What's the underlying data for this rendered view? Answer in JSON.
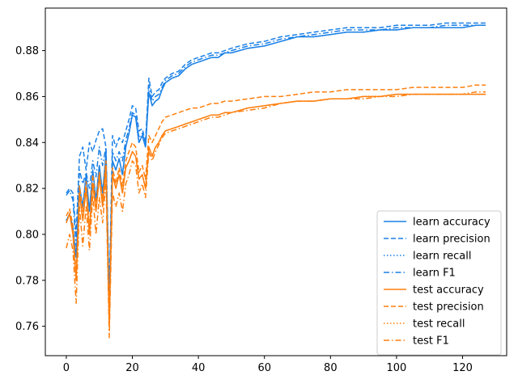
{
  "chart_data": {
    "type": "line",
    "title": "",
    "xlabel": "",
    "ylabel": "",
    "xlim": [
      -6.35,
      133.35
    ],
    "ylim": [
      0.7472,
      0.8985
    ],
    "xticks": [
      0,
      20,
      40,
      60,
      80,
      100,
      120
    ],
    "yticks": [
      0.76,
      0.78,
      0.8,
      0.82,
      0.84,
      0.86,
      0.88
    ],
    "ytick_labels": [
      "0.76",
      "0.78",
      "0.80",
      "0.82",
      "0.84",
      "0.86",
      "0.88"
    ],
    "grid": false,
    "legend_position": "lower-right",
    "colors": {
      "learn": "#1a80e6",
      "test": "#ff7f0e"
    },
    "series": [
      {
        "name": "learn accuracy",
        "group": "learn",
        "style": "solid",
        "x": [
          0,
          1,
          2,
          3,
          4,
          5,
          6,
          7,
          8,
          9,
          10,
          11,
          12,
          13,
          14,
          15,
          16,
          17,
          18,
          19,
          20,
          21,
          22,
          23,
          24,
          25,
          26,
          27,
          28,
          29,
          30,
          32,
          34,
          36,
          38,
          40,
          42,
          44,
          46,
          48,
          50,
          55,
          60,
          65,
          70,
          75,
          80,
          85,
          90,
          95,
          100,
          105,
          110,
          115,
          120,
          124,
          127
        ],
        "y": [
          0.806,
          0.809,
          0.803,
          0.79,
          0.821,
          0.812,
          0.826,
          0.81,
          0.828,
          0.815,
          0.83,
          0.818,
          0.835,
          0.77,
          0.832,
          0.828,
          0.833,
          0.826,
          0.838,
          0.844,
          0.852,
          0.851,
          0.84,
          0.843,
          0.838,
          0.862,
          0.856,
          0.858,
          0.859,
          0.863,
          0.866,
          0.868,
          0.869,
          0.872,
          0.874,
          0.875,
          0.876,
          0.877,
          0.877,
          0.879,
          0.879,
          0.881,
          0.882,
          0.884,
          0.886,
          0.886,
          0.887,
          0.888,
          0.888,
          0.889,
          0.889,
          0.89,
          0.89,
          0.89,
          0.89,
          0.891,
          0.891
        ]
      },
      {
        "name": "learn precision",
        "group": "learn",
        "style": "dashed",
        "x": [
          0,
          1,
          2,
          3,
          4,
          5,
          6,
          7,
          8,
          9,
          10,
          11,
          12,
          13,
          14,
          15,
          16,
          17,
          18,
          19,
          20,
          21,
          22,
          23,
          24,
          25,
          26,
          27,
          28,
          29,
          30,
          32,
          34,
          36,
          38,
          40,
          42,
          44,
          46,
          48,
          50,
          55,
          60,
          65,
          70,
          75,
          80,
          85,
          90,
          95,
          100,
          105,
          110,
          115,
          120,
          124,
          127
        ],
        "y": [
          0.818,
          0.82,
          0.818,
          0.8,
          0.834,
          0.838,
          0.828,
          0.84,
          0.836,
          0.841,
          0.845,
          0.846,
          0.838,
          0.773,
          0.843,
          0.838,
          0.842,
          0.84,
          0.845,
          0.85,
          0.856,
          0.855,
          0.845,
          0.846,
          0.84,
          0.868,
          0.86,
          0.862,
          0.863,
          0.866,
          0.868,
          0.87,
          0.871,
          0.874,
          0.876,
          0.877,
          0.878,
          0.879,
          0.879,
          0.88,
          0.881,
          0.883,
          0.884,
          0.886,
          0.887,
          0.888,
          0.889,
          0.89,
          0.89,
          0.89,
          0.891,
          0.891,
          0.891,
          0.892,
          0.892,
          0.892,
          0.892
        ]
      },
      {
        "name": "learn recall",
        "group": "learn",
        "style": "dotted",
        "x": [
          0,
          1,
          2,
          3,
          4,
          5,
          6,
          7,
          8,
          9,
          10,
          11,
          12,
          13,
          14,
          15,
          16,
          17,
          18,
          19,
          20,
          21,
          22,
          23,
          24,
          25,
          26,
          27,
          28,
          29,
          30,
          32,
          34,
          36,
          38,
          40,
          42,
          44,
          46,
          48,
          50,
          55,
          60,
          65,
          70,
          75,
          80,
          85,
          90,
          95,
          100,
          105,
          110,
          115,
          120,
          124,
          127
        ],
        "y": [
          0.806,
          0.809,
          0.803,
          0.79,
          0.821,
          0.812,
          0.826,
          0.81,
          0.828,
          0.815,
          0.83,
          0.818,
          0.835,
          0.77,
          0.832,
          0.828,
          0.833,
          0.826,
          0.838,
          0.844,
          0.852,
          0.851,
          0.84,
          0.843,
          0.838,
          0.862,
          0.856,
          0.858,
          0.859,
          0.863,
          0.866,
          0.868,
          0.869,
          0.872,
          0.874,
          0.875,
          0.876,
          0.877,
          0.877,
          0.879,
          0.879,
          0.881,
          0.882,
          0.884,
          0.886,
          0.886,
          0.887,
          0.888,
          0.888,
          0.889,
          0.889,
          0.89,
          0.89,
          0.89,
          0.89,
          0.891,
          0.891
        ]
      },
      {
        "name": "learn F1",
        "group": "learn",
        "style": "dashdot",
        "x": [
          0,
          1,
          2,
          3,
          4,
          5,
          6,
          7,
          8,
          9,
          10,
          11,
          12,
          13,
          14,
          15,
          16,
          17,
          18,
          19,
          20,
          21,
          22,
          23,
          24,
          25,
          26,
          27,
          28,
          29,
          30,
          32,
          34,
          36,
          38,
          40,
          42,
          44,
          46,
          48,
          50,
          55,
          60,
          65,
          70,
          75,
          80,
          85,
          90,
          95,
          100,
          105,
          110,
          115,
          120,
          124,
          127
        ],
        "y": [
          0.817,
          0.819,
          0.815,
          0.795,
          0.828,
          0.822,
          0.827,
          0.82,
          0.832,
          0.825,
          0.838,
          0.83,
          0.838,
          0.769,
          0.836,
          0.832,
          0.836,
          0.832,
          0.841,
          0.846,
          0.853,
          0.852,
          0.842,
          0.844,
          0.839,
          0.865,
          0.858,
          0.86,
          0.861,
          0.864,
          0.867,
          0.869,
          0.87,
          0.873,
          0.875,
          0.876,
          0.877,
          0.878,
          0.878,
          0.879,
          0.88,
          0.882,
          0.883,
          0.885,
          0.886,
          0.887,
          0.888,
          0.889,
          0.889,
          0.889,
          0.89,
          0.89,
          0.89,
          0.891,
          0.891,
          0.891,
          0.891
        ]
      },
      {
        "name": "test accuracy",
        "group": "test",
        "style": "solid",
        "x": [
          0,
          1,
          2,
          3,
          4,
          5,
          6,
          7,
          8,
          9,
          10,
          11,
          12,
          13,
          14,
          15,
          16,
          17,
          18,
          19,
          20,
          21,
          22,
          23,
          24,
          25,
          26,
          27,
          28,
          29,
          30,
          32,
          34,
          36,
          38,
          40,
          42,
          44,
          46,
          48,
          50,
          55,
          60,
          65,
          70,
          75,
          80,
          85,
          90,
          95,
          100,
          105,
          110,
          115,
          120,
          124,
          127
        ],
        "y": [
          0.805,
          0.809,
          0.8,
          0.78,
          0.818,
          0.806,
          0.82,
          0.8,
          0.822,
          0.81,
          0.825,
          0.812,
          0.83,
          0.76,
          0.826,
          0.82,
          0.826,
          0.818,
          0.829,
          0.832,
          0.836,
          0.834,
          0.824,
          0.826,
          0.82,
          0.838,
          0.834,
          0.838,
          0.84,
          0.843,
          0.845,
          0.846,
          0.847,
          0.848,
          0.849,
          0.85,
          0.851,
          0.852,
          0.852,
          0.853,
          0.853,
          0.855,
          0.856,
          0.857,
          0.858,
          0.858,
          0.859,
          0.859,
          0.86,
          0.86,
          0.861,
          0.861,
          0.861,
          0.861,
          0.861,
          0.861,
          0.861
        ]
      },
      {
        "name": "test precision",
        "group": "test",
        "style": "dashed",
        "x": [
          0,
          1,
          2,
          3,
          4,
          5,
          6,
          7,
          8,
          9,
          10,
          11,
          12,
          13,
          14,
          15,
          16,
          17,
          18,
          19,
          20,
          21,
          22,
          23,
          24,
          25,
          26,
          27,
          28,
          29,
          30,
          32,
          34,
          36,
          38,
          40,
          42,
          44,
          46,
          48,
          50,
          55,
          60,
          65,
          70,
          75,
          80,
          85,
          90,
          95,
          100,
          105,
          110,
          115,
          120,
          124,
          127
        ],
        "y": [
          0.808,
          0.811,
          0.804,
          0.782,
          0.821,
          0.81,
          0.823,
          0.803,
          0.826,
          0.812,
          0.827,
          0.815,
          0.832,
          0.762,
          0.829,
          0.822,
          0.829,
          0.821,
          0.832,
          0.836,
          0.84,
          0.838,
          0.827,
          0.83,
          0.824,
          0.843,
          0.84,
          0.843,
          0.846,
          0.849,
          0.851,
          0.852,
          0.853,
          0.854,
          0.855,
          0.855,
          0.856,
          0.857,
          0.857,
          0.858,
          0.858,
          0.859,
          0.86,
          0.86,
          0.861,
          0.862,
          0.862,
          0.863,
          0.863,
          0.863,
          0.863,
          0.864,
          0.864,
          0.864,
          0.864,
          0.865,
          0.865
        ]
      },
      {
        "name": "test recall",
        "group": "test",
        "style": "dotted",
        "x": [
          0,
          1,
          2,
          3,
          4,
          5,
          6,
          7,
          8,
          9,
          10,
          11,
          12,
          13,
          14,
          15,
          16,
          17,
          18,
          19,
          20,
          21,
          22,
          23,
          24,
          25,
          26,
          27,
          28,
          29,
          30,
          32,
          34,
          36,
          38,
          40,
          42,
          44,
          46,
          48,
          50,
          55,
          60,
          65,
          70,
          75,
          80,
          85,
          90,
          95,
          100,
          105,
          110,
          115,
          120,
          124,
          127
        ],
        "y": [
          0.805,
          0.809,
          0.8,
          0.78,
          0.818,
          0.806,
          0.82,
          0.8,
          0.822,
          0.81,
          0.825,
          0.812,
          0.83,
          0.76,
          0.826,
          0.82,
          0.826,
          0.818,
          0.829,
          0.832,
          0.836,
          0.834,
          0.824,
          0.826,
          0.82,
          0.838,
          0.834,
          0.838,
          0.84,
          0.843,
          0.845,
          0.846,
          0.847,
          0.848,
          0.849,
          0.85,
          0.851,
          0.852,
          0.852,
          0.853,
          0.853,
          0.855,
          0.856,
          0.857,
          0.858,
          0.858,
          0.859,
          0.859,
          0.86,
          0.86,
          0.861,
          0.861,
          0.861,
          0.861,
          0.861,
          0.861,
          0.861
        ]
      },
      {
        "name": "test F1",
        "group": "test",
        "style": "dashdot",
        "x": [
          0,
          1,
          2,
          3,
          4,
          5,
          6,
          7,
          8,
          9,
          10,
          11,
          12,
          13,
          14,
          15,
          16,
          17,
          18,
          19,
          20,
          21,
          22,
          23,
          24,
          25,
          26,
          27,
          28,
          29,
          30,
          32,
          34,
          36,
          38,
          40,
          42,
          44,
          46,
          48,
          50,
          55,
          60,
          65,
          70,
          75,
          80,
          85,
          90,
          95,
          100,
          105,
          110,
          115,
          120,
          124,
          127
        ],
        "y": [
          0.794,
          0.8,
          0.793,
          0.77,
          0.812,
          0.795,
          0.812,
          0.793,
          0.817,
          0.8,
          0.816,
          0.805,
          0.824,
          0.755,
          0.818,
          0.812,
          0.818,
          0.81,
          0.822,
          0.826,
          0.832,
          0.83,
          0.818,
          0.822,
          0.816,
          0.836,
          0.832,
          0.836,
          0.839,
          0.842,
          0.844,
          0.845,
          0.846,
          0.847,
          0.848,
          0.849,
          0.85,
          0.851,
          0.851,
          0.852,
          0.853,
          0.854,
          0.855,
          0.857,
          0.858,
          0.858,
          0.859,
          0.859,
          0.859,
          0.86,
          0.86,
          0.861,
          0.861,
          0.861,
          0.861,
          0.862,
          0.862
        ]
      }
    ]
  }
}
